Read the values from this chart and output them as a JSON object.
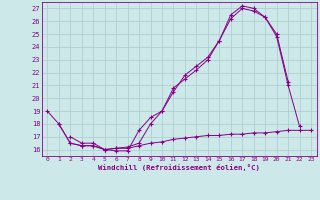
{
  "xlabel": "Windchill (Refroidissement éolien,°C)",
  "bg_color": "#cce8e8",
  "grid_color": "#aacccc",
  "line_color": "#880088",
  "xlim": [
    -0.5,
    23.5
  ],
  "ylim": [
    15.5,
    27.5
  ],
  "xticks": [
    0,
    1,
    2,
    3,
    4,
    5,
    6,
    7,
    8,
    9,
    10,
    11,
    12,
    13,
    14,
    15,
    16,
    17,
    18,
    19,
    20,
    21,
    22,
    23
  ],
  "yticks": [
    16,
    17,
    18,
    19,
    20,
    21,
    22,
    23,
    24,
    25,
    26,
    27
  ],
  "line1_x": [
    0,
    1,
    2,
    3,
    4,
    5,
    6,
    7,
    8,
    9,
    10,
    11,
    12,
    13,
    14,
    15,
    16,
    17,
    18,
    19,
    20,
    21
  ],
  "line1_y": [
    19.0,
    18.0,
    16.5,
    16.3,
    16.3,
    16.0,
    15.9,
    15.9,
    17.5,
    18.5,
    19.0,
    20.8,
    21.5,
    22.2,
    23.0,
    24.5,
    26.5,
    27.2,
    27.0,
    26.3,
    25.0,
    21.3
  ],
  "line2_x": [
    1,
    2,
    3,
    4,
    5,
    6,
    7,
    8,
    9,
    10,
    11,
    12,
    13,
    14,
    15,
    16,
    17,
    18,
    19,
    20,
    21,
    22,
    23
  ],
  "line2_y": [
    18.0,
    16.5,
    16.3,
    16.3,
    16.0,
    16.1,
    16.1,
    16.3,
    16.5,
    16.6,
    16.8,
    16.9,
    17.0,
    17.1,
    17.1,
    17.2,
    17.2,
    17.3,
    17.3,
    17.4,
    17.5,
    17.5,
    17.5
  ],
  "line3_x": [
    2,
    3,
    4,
    5,
    6,
    7,
    8,
    9,
    10,
    11,
    12,
    13,
    14,
    15,
    16,
    17,
    18,
    19,
    20,
    21,
    22
  ],
  "line3_y": [
    17.0,
    16.5,
    16.5,
    16.0,
    16.1,
    16.2,
    16.5,
    18.0,
    19.0,
    20.5,
    21.8,
    22.5,
    23.2,
    24.5,
    26.2,
    27.0,
    26.8,
    26.3,
    24.8,
    21.0,
    17.8
  ]
}
